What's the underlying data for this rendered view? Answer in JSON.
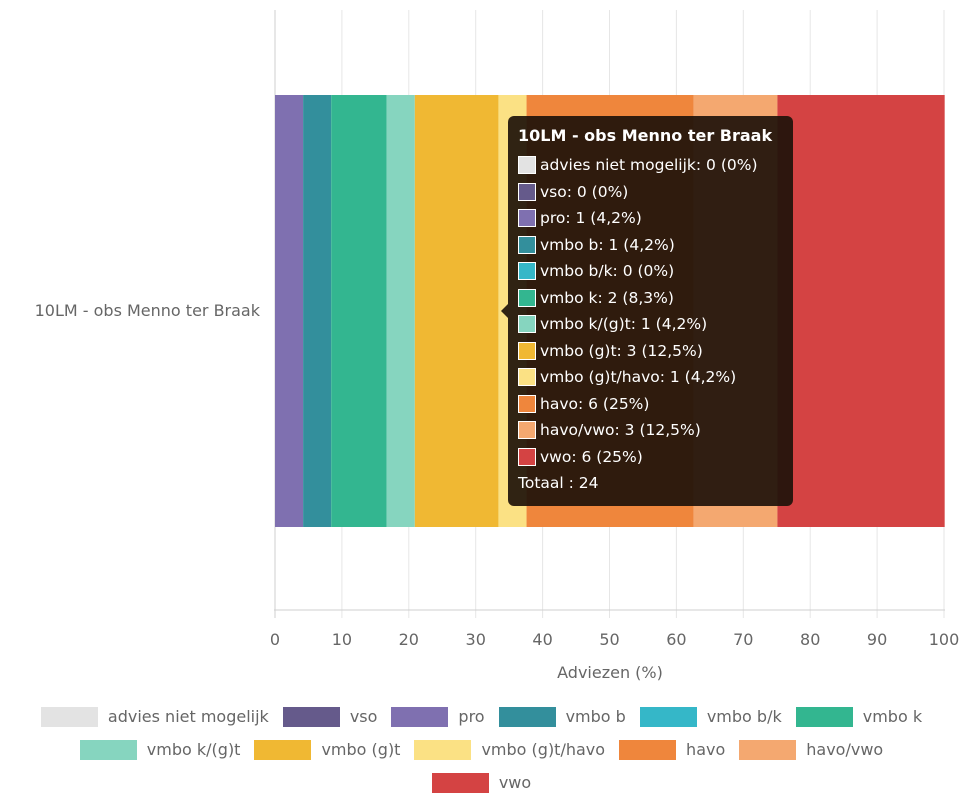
{
  "chart_data": {
    "type": "bar",
    "orientation": "horizontal",
    "stacked": true,
    "categories": [
      "10LM - obs Menno ter Braak"
    ],
    "xlabel": "Adviezen (%)",
    "xlim": [
      0,
      100
    ],
    "x_ticks": [
      "0",
      "10",
      "20",
      "30",
      "40",
      "50",
      "60",
      "70",
      "80",
      "90",
      "100"
    ],
    "grid": true,
    "legend_position": "bottom",
    "series": [
      {
        "name": "advies niet mogelijk",
        "values": [
          0
        ],
        "color": "#e3e3e3"
      },
      {
        "name": "vso",
        "values": [
          0
        ],
        "color": "#655a8b"
      },
      {
        "name": "pro",
        "values": [
          4.2
        ],
        "color": "#7f70b0"
      },
      {
        "name": "vmbo b",
        "values": [
          4.2
        ],
        "color": "#338f9c"
      },
      {
        "name": "vmbo b/k",
        "values": [
          0
        ],
        "color": "#35b7c8"
      },
      {
        "name": "vmbo k",
        "values": [
          8.3
        ],
        "color": "#33b690"
      },
      {
        "name": "vmbo k/(g)t",
        "values": [
          4.2
        ],
        "color": "#86d5bf"
      },
      {
        "name": "vmbo (g)t",
        "values": [
          12.5
        ],
        "color": "#f0b833"
      },
      {
        "name": "vmbo (g)t/havo",
        "values": [
          4.2
        ],
        "color": "#fbe184"
      },
      {
        "name": "havo",
        "values": [
          25
        ],
        "color": "#ef863c"
      },
      {
        "name": "havo/vwo",
        "values": [
          12.5
        ],
        "color": "#f4a870"
      },
      {
        "name": "vwo",
        "values": [
          25
        ],
        "color": "#d44343"
      }
    ]
  },
  "tooltip": {
    "title": "10LM - obs Menno ter Braak",
    "rows": [
      {
        "text": "advies niet mogelijk: 0 (0%)",
        "color": "#e3e3e3"
      },
      {
        "text": "vso: 0 (0%)",
        "color": "#655a8b"
      },
      {
        "text": "pro: 1 (4,2%)",
        "color": "#7f70b0"
      },
      {
        "text": "vmbo b: 1 (4,2%)",
        "color": "#338f9c"
      },
      {
        "text": "vmbo b/k: 0 (0%)",
        "color": "#35b7c8"
      },
      {
        "text": "vmbo k: 2 (8,3%)",
        "color": "#33b690"
      },
      {
        "text": "vmbo k/(g)t: 1 (4,2%)",
        "color": "#86d5bf"
      },
      {
        "text": "vmbo (g)t: 3 (12,5%)",
        "color": "#f0b833"
      },
      {
        "text": "vmbo (g)t/havo: 1 (4,2%)",
        "color": "#fbe184"
      },
      {
        "text": "havo: 6 (25%)",
        "color": "#ef863c"
      },
      {
        "text": "havo/vwo: 3 (12,5%)",
        "color": "#f4a870"
      },
      {
        "text": "vwo: 6 (25%)",
        "color": "#d44343"
      }
    ],
    "total": "Totaal : 24"
  }
}
